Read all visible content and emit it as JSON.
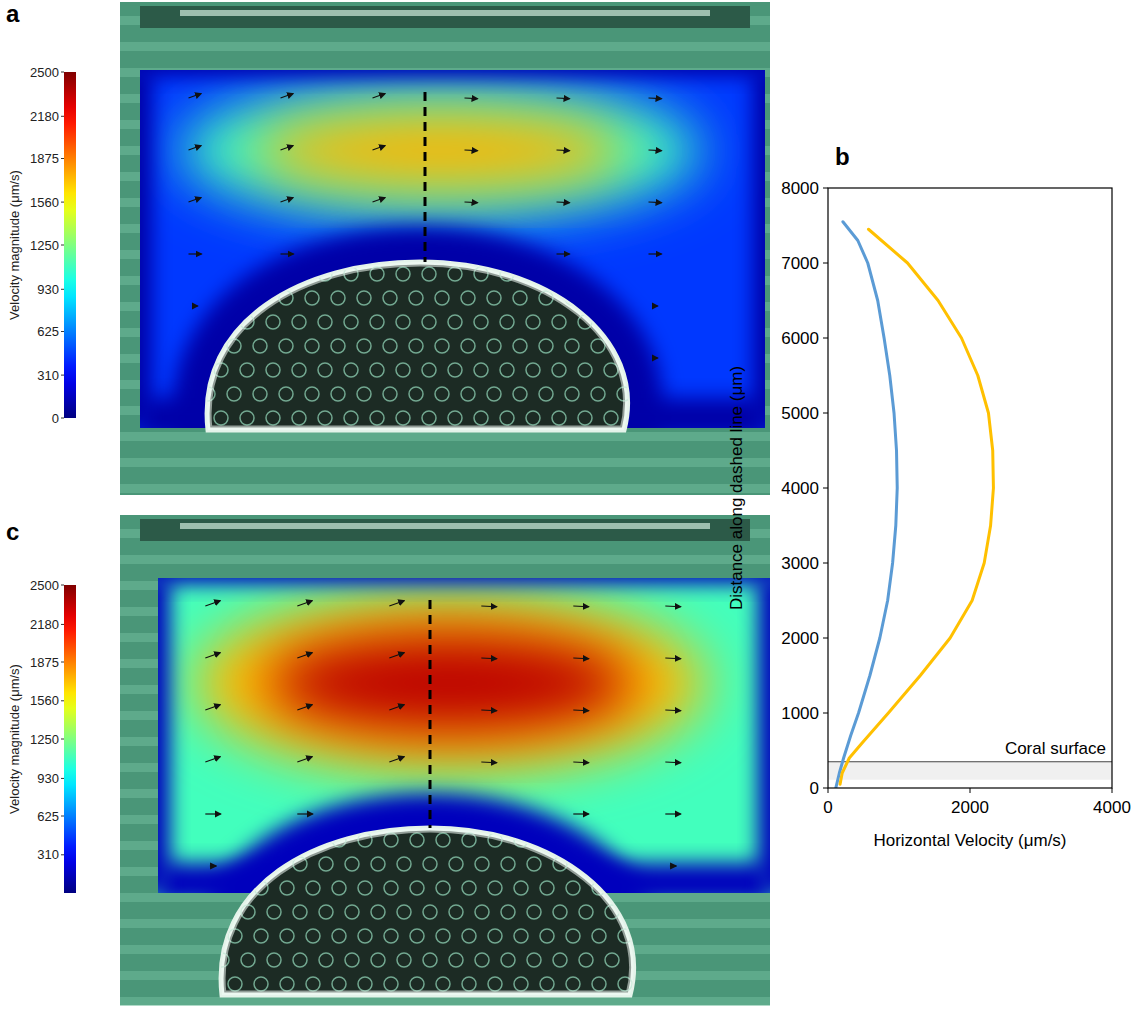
{
  "panels": [
    {
      "label": "a",
      "colorbar": {
        "title": "Velocity magnitude (μm/s)",
        "range": [
          0,
          2500
        ],
        "ticks": [
          0,
          310,
          625,
          930,
          1250,
          1560,
          1875,
          2180,
          2500
        ]
      },
      "velocity_field": {
        "min": 100,
        "background": 450,
        "peak": 1750
      }
    },
    {
      "label": "c",
      "colorbar": {
        "title": "Velocity magnitude (μm/s)",
        "range": [
          0,
          2500
        ],
        "ticks": [
          310,
          625,
          930,
          1250,
          1560,
          1875,
          2180,
          2500
        ]
      },
      "velocity_field": {
        "min": 150,
        "background": 1100,
        "peak": 2350
      }
    }
  ],
  "chart_data": {
    "type": "line",
    "panel": "b",
    "xlabel": "Horizontal Velocity (μm/s)",
    "ylabel": "Distance along dashed line (μm)",
    "xlim": [
      0,
      4000
    ],
    "xticks": [
      0,
      2000,
      4000
    ],
    "ylim": [
      0,
      8000
    ],
    "yticks": [
      0,
      1000,
      2000,
      3000,
      4000,
      5000,
      6000,
      7000,
      8000
    ],
    "grid": false,
    "annotation": {
      "text": "Coral surface",
      "y": 350
    },
    "series": [
      {
        "color": "#5b9bd5",
        "x": [
          110,
          160,
          220,
          320,
          430,
          590,
          730,
          840,
          910,
          955,
          975,
          965,
          930,
          870,
          790,
          700,
          560,
          420,
          210
        ],
        "y": [
          0,
          200,
          400,
          700,
          1000,
          1500,
          2000,
          2500,
          3000,
          3500,
          4000,
          4500,
          5000,
          5500,
          6000,
          6500,
          7000,
          7300,
          7550
        ]
      },
      {
        "color": "#ffc000",
        "x": [
          170,
          200,
          300,
          480,
          850,
          1300,
          1720,
          2030,
          2200,
          2290,
          2330,
          2320,
          2260,
          2110,
          1880,
          1550,
          1120,
          570
        ],
        "y": [
          50,
          200,
          400,
          600,
          1000,
          1500,
          2000,
          2500,
          3000,
          3500,
          4000,
          4500,
          5000,
          5500,
          6000,
          6500,
          7000,
          7450
        ]
      }
    ]
  }
}
